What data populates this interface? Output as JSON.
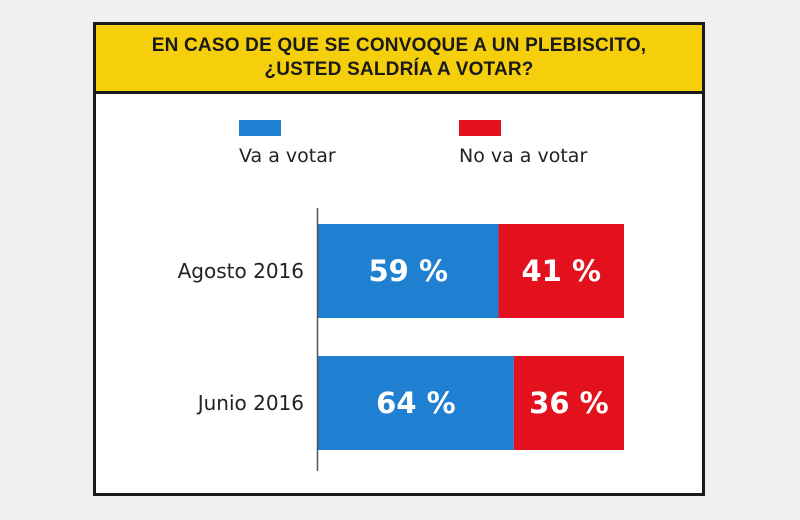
{
  "chart_data": {
    "type": "bar",
    "stacked": true,
    "orientation": "horizontal",
    "title": "EN CASO DE QUE SE CONVOQUE A UN PLEBISCITO, ¿USTED SALDRÍA A VOTAR?",
    "title_lines": [
      "EN CASO DE QUE SE CONVOQUE A UN PLEBISCITO,",
      "¿USTED SALDRÍA A VOTAR?"
    ],
    "categories": [
      "Agosto 2016",
      "Junio 2016"
    ],
    "series": [
      {
        "name": "Va a votar",
        "color": "#1f7fd0",
        "values": [
          59,
          64
        ],
        "labels": [
          "59 %",
          "64 %"
        ]
      },
      {
        "name": "No va a votar",
        "color": "#e3101e",
        "values": [
          41,
          36
        ],
        "labels": [
          "41 %",
          "36 %"
        ]
      }
    ],
    "xlim": [
      0,
      100
    ],
    "unit": "%",
    "legend_position": "top"
  }
}
